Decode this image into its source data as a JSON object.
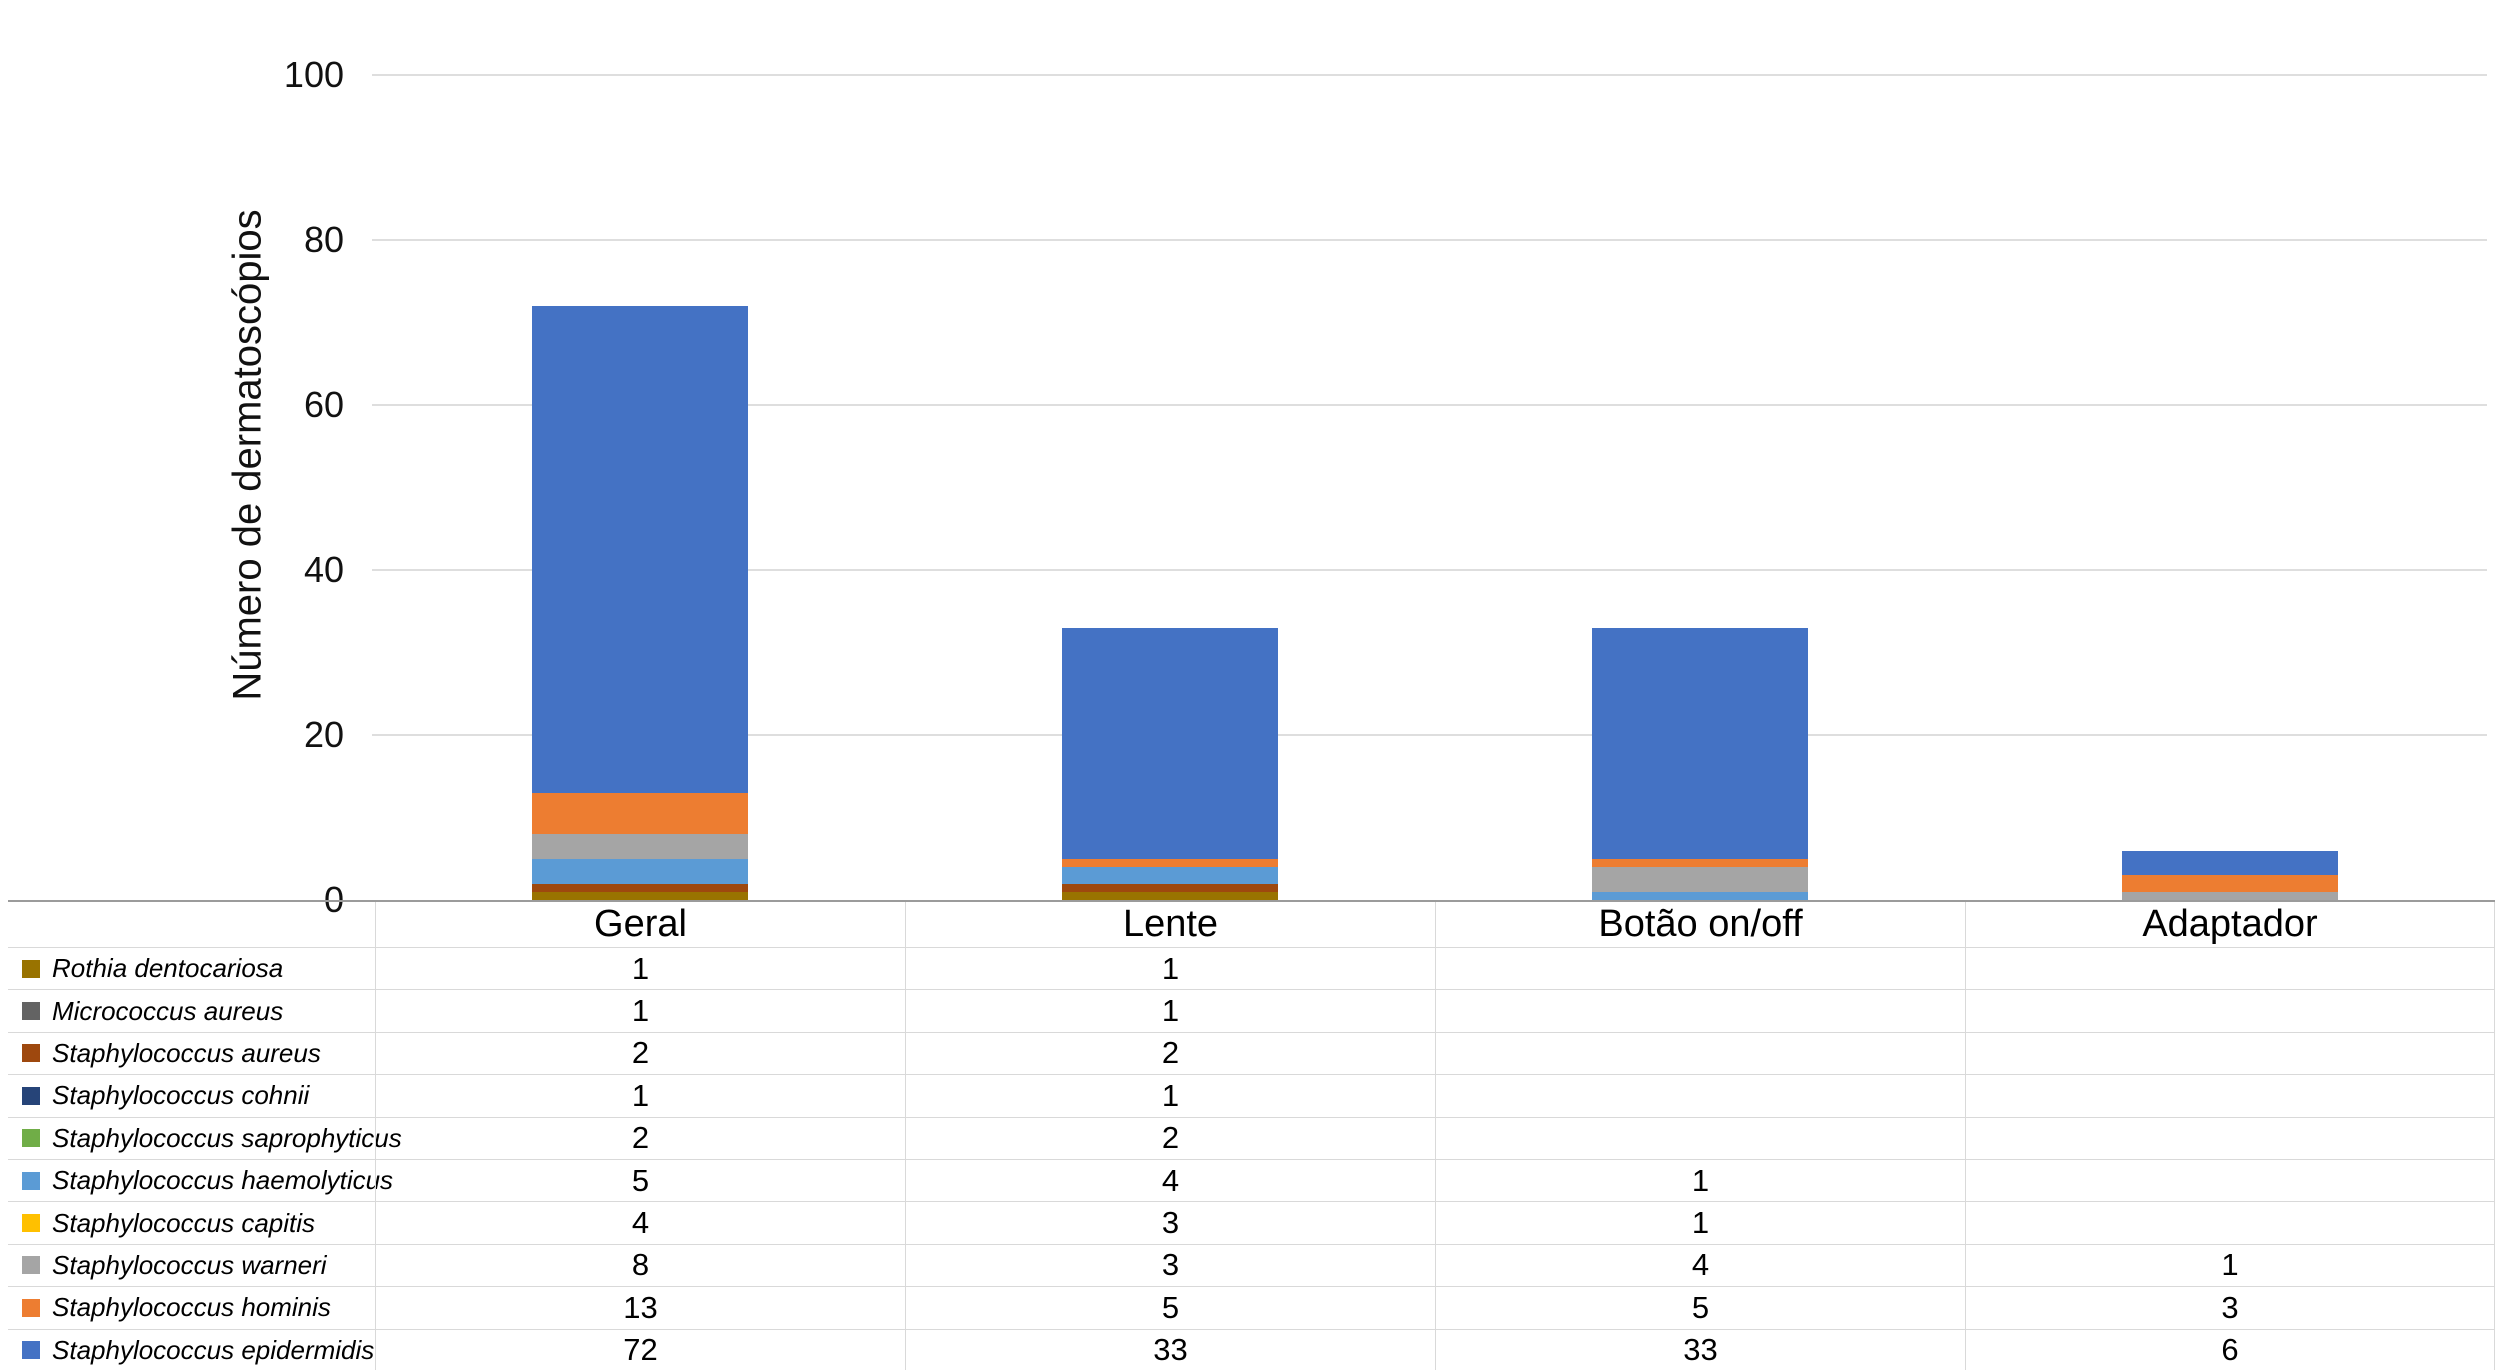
{
  "chart_data": {
    "type": "bar",
    "stacked": true,
    "title": "",
    "xlabel": "",
    "ylabel": "Número de dermatoscópios",
    "categories": [
      "Geral",
      "Lente",
      "Botão on/off",
      "Adaptador"
    ],
    "y_ticks": [
      0,
      20,
      40,
      60,
      80,
      100
    ],
    "ylim": [
      0,
      110
    ],
    "grid": "horizontal",
    "legend_position": "table-rows-left-of-data-table",
    "stack_order": "bottom-to-top is the reverse of the series list (Staphylococcus epidermidis at the bottom of each bar)",
    "series": [
      {
        "name": "Rothia dentocariosa",
        "color": "#997300",
        "values": [
          1,
          1,
          null,
          null
        ]
      },
      {
        "name": "Micrococcus aureus",
        "color": "#636363",
        "values": [
          1,
          1,
          null,
          null
        ]
      },
      {
        "name": "Staphylococcus aureus",
        "color": "#9E480E",
        "values": [
          2,
          2,
          null,
          null
        ]
      },
      {
        "name": "Staphylococcus cohnii",
        "color": "#264478",
        "values": [
          1,
          1,
          null,
          null
        ]
      },
      {
        "name": "Staphylococcus saprophyticus",
        "color": "#70AD47",
        "values": [
          2,
          2,
          null,
          null
        ]
      },
      {
        "name": "Staphylococcus haemolyticus",
        "color": "#5B9BD5",
        "values": [
          5,
          4,
          1,
          null
        ]
      },
      {
        "name": "Staphylococcus capitis",
        "color": "#FFC000",
        "values": [
          4,
          3,
          1,
          null
        ]
      },
      {
        "name": "Staphylococcus warneri",
        "color": "#A5A5A5",
        "values": [
          8,
          3,
          4,
          1
        ]
      },
      {
        "name": "Staphylococcus hominis",
        "color": "#ED7D31",
        "values": [
          13,
          5,
          5,
          3
        ]
      },
      {
        "name": "Staphylococcus epidermidis",
        "color": "#4472C4",
        "values": [
          72,
          33,
          33,
          6
        ]
      }
    ],
    "colors": {
      "gridline": "#dedede",
      "axis_line": "#9b9b9b",
      "table_border": "#d9d9d9",
      "background": "#ffffff"
    }
  }
}
